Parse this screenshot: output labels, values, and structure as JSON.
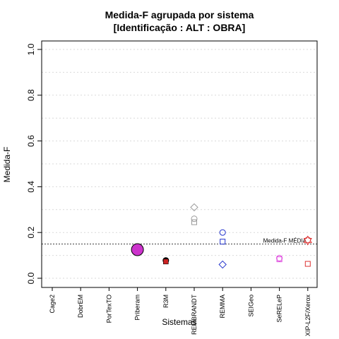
{
  "chart_data": {
    "type": "scatter",
    "title_line1": "Medida-F agrupada por sistema",
    "title_line2": "[Identificação : ALT : OBRA]",
    "xlabel": "Sistemas",
    "ylabel": "Medida-F",
    "ylim": [
      0,
      1
    ],
    "y_ticks": [
      "0.0",
      "0.2",
      "0.4",
      "0.6",
      "0.8",
      "1.0"
    ],
    "grid": "horizontal dotted",
    "categories": [
      "Cage2",
      "DobrEM",
      "PorTexTO",
      "Priberam",
      "R3M",
      "REMBRANDT",
      "REMMA",
      "SEIGeo",
      "SeRELeP",
      "XIP-L2F/Xerox"
    ],
    "points": [
      {
        "system": "Priberam",
        "y": 0.125,
        "shape": "circle-filled-large",
        "color": "#cc33cc"
      },
      {
        "system": "R3M",
        "y": 0.078,
        "shape": "circle-filled",
        "color": "#000000"
      },
      {
        "system": "R3M",
        "y": 0.073,
        "shape": "square-filled",
        "color": "#cc2222"
      },
      {
        "system": "REMBRANDT",
        "y": 0.31,
        "shape": "diamond",
        "color": "#999999"
      },
      {
        "system": "REMBRANDT",
        "y": 0.26,
        "shape": "circle",
        "color": "#999999"
      },
      {
        "system": "REMBRANDT",
        "y": 0.245,
        "shape": "square",
        "color": "#999999"
      },
      {
        "system": "REMMA",
        "y": 0.2,
        "shape": "circle",
        "color": "#2233cc"
      },
      {
        "system": "REMMA",
        "y": 0.16,
        "shape": "square",
        "color": "#2233cc"
      },
      {
        "system": "REMMA",
        "y": 0.06,
        "shape": "diamond",
        "color": "#2233cc"
      },
      {
        "system": "SeRELeP",
        "y": 0.088,
        "shape": "circle",
        "color": "#dd44dd"
      },
      {
        "system": "SeRELeP",
        "y": 0.083,
        "shape": "square",
        "color": "#dd44dd"
      },
      {
        "system": "XIP-L2F/Xerox",
        "y": 0.168,
        "shape": "circle",
        "color": "#dd5555"
      },
      {
        "system": "XIP-L2F/Xerox",
        "y": 0.165,
        "shape": "star",
        "color": "#dd3333"
      },
      {
        "system": "XIP-L2F/Xerox",
        "y": 0.063,
        "shape": "square",
        "color": "#dd3333"
      }
    ],
    "reference_line": {
      "y": 0.15,
      "label": "Medida-F MÉDIA",
      "style": "dotted"
    }
  }
}
